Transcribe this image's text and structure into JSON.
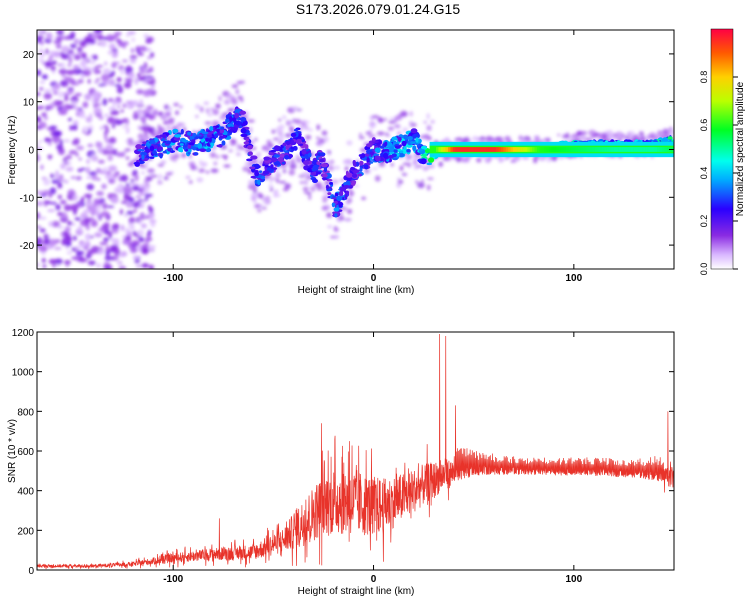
{
  "title": "S173.2026.079.01.24.G15",
  "colors": {
    "snr_line": "#e8332a",
    "frame": "#000000",
    "spectrogram_track": "#ff1a1a"
  },
  "chart_data": [
    {
      "type": "heatmap",
      "xlabel": "Height of straight line (km)",
      "ylabel": "Frequency (Hz)",
      "xlim": [
        -168,
        150
      ],
      "ylim": [
        -25,
        25
      ],
      "x_ticks": [
        -100,
        0,
        100
      ],
      "x_tick_labels": [
        "-100",
        "0",
        "100"
      ],
      "y_ticks": [
        -20,
        -10,
        0,
        10,
        20
      ],
      "y_tick_labels": [
        "-20",
        "-10",
        "0",
        "10",
        "20"
      ],
      "colorbar": {
        "label": "Normalized spectral amplitude",
        "range": [
          0.0,
          1.0
        ],
        "ticks": [
          0.0,
          0.2,
          0.4,
          0.6,
          0.8
        ],
        "tick_labels": [
          "0.0",
          "0.2",
          "0.4",
          "0.6",
          "0.8"
        ],
        "colormap": "rainbow"
      },
      "ridge": {
        "x": [
          -118,
          -112,
          -105,
          -98,
          -90,
          -83,
          -76,
          -70,
          -66,
          -62,
          -58,
          -52,
          -46,
          -42,
          -38,
          -34,
          -30,
          -26,
          -22,
          -19,
          -16,
          -12,
          -8,
          -4,
          0,
          5,
          10,
          15,
          20,
          25,
          30,
          40,
          60,
          82,
          100,
          120,
          140,
          149
        ],
        "freq": [
          -1,
          0,
          1,
          2,
          1,
          2,
          3,
          6,
          7,
          0,
          -6,
          -3,
          -1,
          0,
          3,
          -1,
          -5,
          -2,
          -8,
          -12,
          -10,
          -6,
          -4,
          -2,
          0,
          -1,
          0,
          1,
          2,
          -1,
          -1,
          0,
          0,
          0,
          1,
          1,
          1,
          2
        ],
        "amplitude": [
          0.3,
          0.35,
          0.35,
          0.4,
          0.35,
          0.4,
          0.35,
          0.35,
          0.3,
          0.3,
          0.35,
          0.3,
          0.3,
          0.3,
          0.3,
          0.3,
          0.3,
          0.3,
          0.3,
          0.35,
          0.35,
          0.3,
          0.3,
          0.35,
          0.35,
          0.4,
          0.4,
          0.45,
          0.4,
          0.5,
          0.6,
          0.95,
          0.95,
          0.6,
          0.55,
          0.5,
          0.5,
          0.55
        ]
      },
      "noise_region_x": [
        -168,
        -120
      ]
    },
    {
      "type": "line",
      "xlabel": "Height of straight line (km)",
      "ylabel": "SNR (10 * v/v)",
      "xlim": [
        -168,
        150
      ],
      "ylim": [
        0,
        1200
      ],
      "x_ticks": [
        -100,
        0,
        100
      ],
      "x_tick_labels": [
        "-100",
        "0",
        "100"
      ],
      "y_ticks": [
        0,
        200,
        400,
        600,
        800,
        1000,
        1200
      ],
      "y_tick_labels": [
        "0",
        "200",
        "400",
        "600",
        "800",
        "1000",
        "1200"
      ],
      "series": [
        {
          "envelope_x": [
            -168,
            -140,
            -120,
            -100,
            -80,
            -60,
            -45,
            -35,
            -25,
            -15,
            -5,
            5,
            15,
            25,
            35,
            45,
            55,
            70,
            90,
            110,
            130,
            145,
            150
          ],
          "envelope_mean": [
            20,
            20,
            30,
            60,
            80,
            90,
            150,
            240,
            330,
            360,
            330,
            320,
            370,
            430,
            480,
            500,
            510,
            505,
            500,
            500,
            490,
            480,
            470
          ],
          "envelope_amp": [
            10,
            10,
            15,
            30,
            40,
            50,
            80,
            150,
            200,
            230,
            200,
            180,
            150,
            130,
            100,
            70,
            50,
            40,
            40,
            40,
            40,
            60,
            80
          ],
          "peaks": [
            {
              "x": -77,
              "y": 260
            },
            {
              "x": -26,
              "y": 740
            },
            {
              "x": -12,
              "y": 650
            },
            {
              "x": 33,
              "y": 1190
            },
            {
              "x": 36,
              "y": 1180
            },
            {
              "x": 41,
              "y": 830
            },
            {
              "x": 147,
              "y": 800
            }
          ]
        }
      ]
    }
  ]
}
